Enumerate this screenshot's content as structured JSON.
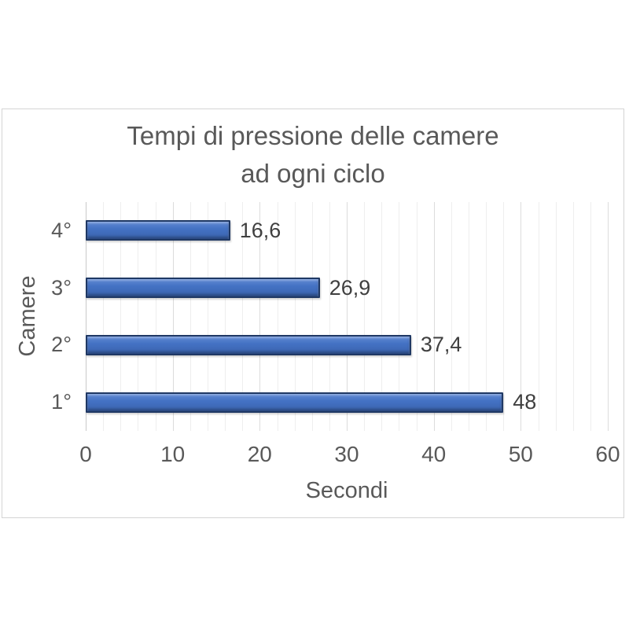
{
  "page": {
    "background": "#ffffff"
  },
  "chart_data": {
    "type": "bar",
    "orientation": "horizontal",
    "title": "Tempi di pressione delle camere ad ogni ciclo",
    "title_lines": [
      "Tempi di pressione delle camere",
      "ad ogni ciclo"
    ],
    "categories": [
      "4°",
      "3°",
      "2°",
      "1°"
    ],
    "values": [
      16.6,
      26.9,
      37.4,
      48
    ],
    "value_labels": [
      "16,6",
      "26,9",
      "37,4",
      "48"
    ],
    "xlabel": "Secondi",
    "ylabel": "Camere",
    "xlim": [
      0,
      60
    ],
    "x_ticks": [
      "0",
      "10",
      "20",
      "30",
      "40",
      "50",
      "60"
    ],
    "minor_grid_step": 2,
    "major_grid_step": 10,
    "grid": true,
    "legend": false,
    "colors": {
      "bar_fill": "#4472c4",
      "bar_border": "#1f3864",
      "title_text": "#595959",
      "axis_text": "#595959",
      "value_text": "#3f3f3f",
      "gridline_minor": "#eeeeee",
      "gridline_major": "#dcdcdc",
      "frame_border": "#d4d4d4"
    }
  }
}
